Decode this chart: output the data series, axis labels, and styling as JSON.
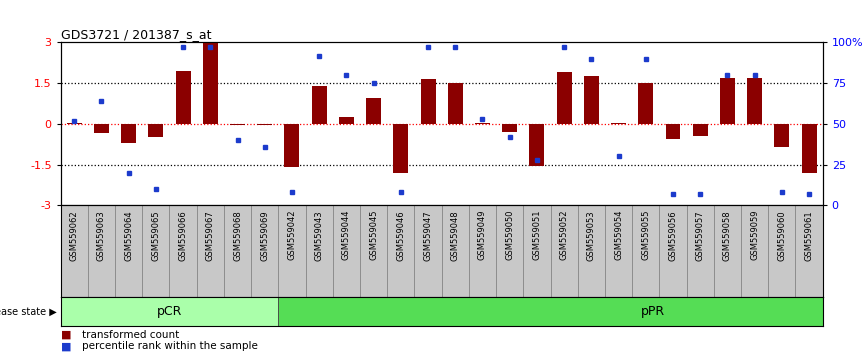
{
  "title": "GDS3721 / 201387_s_at",
  "samples": [
    "GSM559062",
    "GSM559063",
    "GSM559064",
    "GSM559065",
    "GSM559066",
    "GSM559067",
    "GSM559068",
    "GSM559069",
    "GSM559042",
    "GSM559043",
    "GSM559044",
    "GSM559045",
    "GSM559046",
    "GSM559047",
    "GSM559048",
    "GSM559049",
    "GSM559050",
    "GSM559051",
    "GSM559052",
    "GSM559053",
    "GSM559054",
    "GSM559055",
    "GSM559056",
    "GSM559057",
    "GSM559058",
    "GSM559059",
    "GSM559060",
    "GSM559061"
  ],
  "transformed_count": [
    0.05,
    -0.35,
    -0.72,
    -0.5,
    1.95,
    2.98,
    -0.05,
    -0.05,
    -1.6,
    1.4,
    0.25,
    0.95,
    -1.82,
    1.65,
    1.5,
    0.05,
    -0.3,
    -1.55,
    1.9,
    1.75,
    0.05,
    1.5,
    -0.55,
    -0.45,
    1.7,
    1.7,
    -0.85,
    -1.82
  ],
  "percentile_rank": [
    52,
    64,
    20,
    10,
    97,
    97,
    40,
    36,
    8,
    92,
    80,
    75,
    8,
    97,
    97,
    53,
    42,
    28,
    97,
    90,
    30,
    90,
    7,
    7,
    80,
    80,
    8,
    7
  ],
  "pCR_count": 8,
  "bar_color": "#8B0000",
  "dot_color": "#1C3BCC",
  "ylim": [
    -3,
    3
  ],
  "yticks_left": [
    -3,
    -1.5,
    0,
    1.5,
    3
  ],
  "yticks_right_vals": [
    0,
    25,
    50,
    75,
    100
  ],
  "yticks_right_labels": [
    "0",
    "25",
    "50",
    "75",
    "100%"
  ],
  "bg_color": "#ffffff",
  "cell_bg_color": "#c8c8c8",
  "pCR_color": "#aaffaa",
  "pPR_color": "#55dd55",
  "legend_items": [
    "transformed count",
    "percentile rank within the sample"
  ]
}
